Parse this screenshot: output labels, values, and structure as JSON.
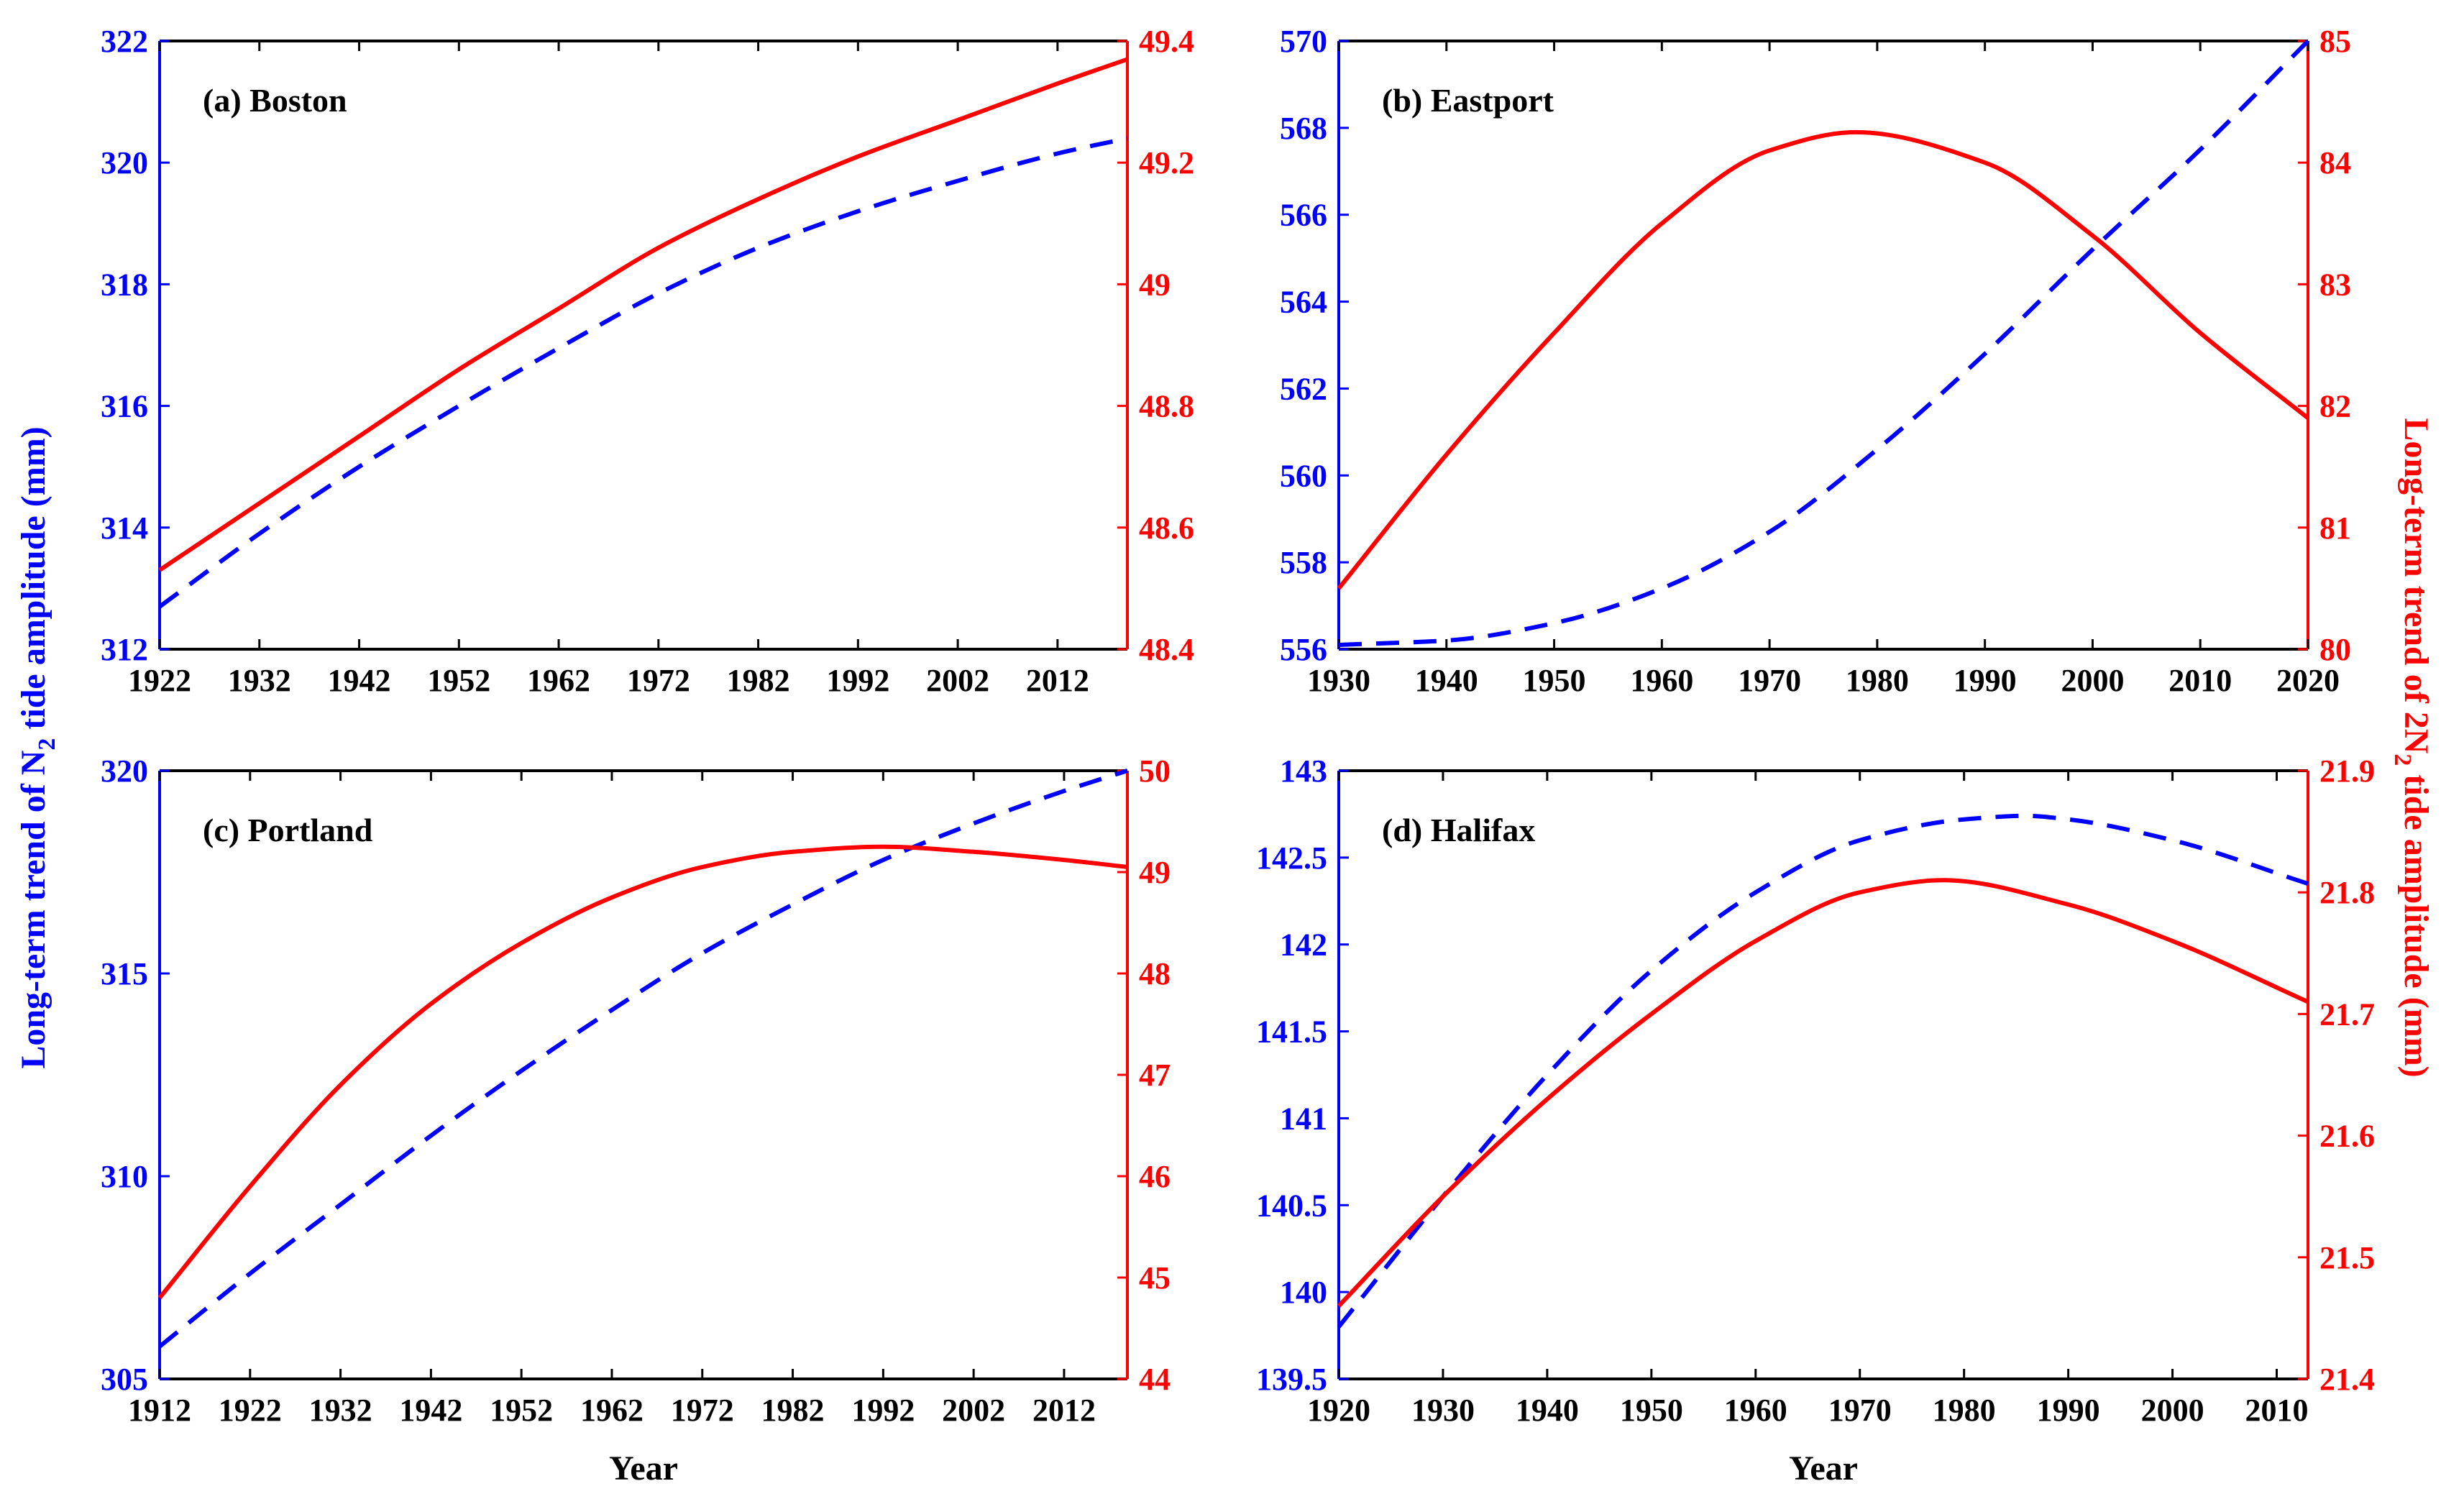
{
  "colors": {
    "left": "#0000ff",
    "right": "#ff0000",
    "axis": "#000000"
  },
  "figure": {
    "ylabel_left": {
      "pre": "Long-term trend of N",
      "sub": "2",
      "post": " tide amplitude (mm)"
    },
    "ylabel_right": {
      "pre": "Long-term trend of 2N",
      "sub": "2",
      "post": " tide amplitude (mm)"
    }
  },
  "chart_data": [
    {
      "type": "line",
      "title": "(a) Boston",
      "xlabel": "",
      "xlim": [
        1922,
        2019
      ],
      "xticks": [
        1922,
        1932,
        1942,
        1952,
        1962,
        1972,
        1982,
        1992,
        2002,
        2012
      ],
      "ylim_left": [
        312,
        322
      ],
      "yticks_left": [
        "312",
        "314",
        "316",
        "318",
        "320",
        "322"
      ],
      "ylim_right": [
        48.4,
        49.4
      ],
      "yticks_right": [
        "48.4",
        "48.6",
        "48.8",
        "49",
        "49.2",
        "49.4"
      ],
      "series": [
        {
          "name": "N2 (left axis, dashed)",
          "axis": "left",
          "style": "dashed",
          "x": [
            1922,
            1932,
            1942,
            1952,
            1962,
            1972,
            1982,
            1992,
            2002,
            2012,
            2019
          ],
          "y": [
            312.7,
            313.9,
            315.0,
            316.0,
            316.95,
            317.85,
            318.6,
            319.2,
            319.7,
            320.15,
            320.4
          ]
        },
        {
          "name": "2N2 (right axis, solid)",
          "axis": "right",
          "style": "solid",
          "x": [
            1922,
            1932,
            1942,
            1952,
            1962,
            1972,
            1982,
            1992,
            2002,
            2012,
            2019
          ],
          "y": [
            48.53,
            48.64,
            48.75,
            48.86,
            48.96,
            49.06,
            49.14,
            49.21,
            49.27,
            49.33,
            49.37
          ]
        }
      ]
    },
    {
      "type": "line",
      "title": "(b) Eastport",
      "xlabel": "",
      "xlim": [
        1930,
        2020
      ],
      "xticks": [
        1930,
        1940,
        1950,
        1960,
        1970,
        1980,
        1990,
        2000,
        2010,
        2020
      ],
      "ylim_left": [
        556,
        570
      ],
      "yticks_left": [
        "556",
        "558",
        "560",
        "562",
        "564",
        "566",
        "568",
        "570"
      ],
      "ylim_right": [
        80,
        85
      ],
      "yticks_right": [
        "80",
        "81",
        "82",
        "83",
        "84",
        "85"
      ],
      "series": [
        {
          "name": "N2 (left axis, dashed)",
          "axis": "left",
          "style": "dashed",
          "x": [
            1930,
            1940,
            1950,
            1960,
            1970,
            1980,
            1990,
            2000,
            2010,
            2020
          ],
          "y": [
            556.1,
            556.2,
            556.6,
            557.4,
            558.7,
            560.6,
            562.8,
            565.2,
            567.5,
            570.0
          ]
        },
        {
          "name": "2N2 (right axis, solid)",
          "axis": "right",
          "style": "solid",
          "x": [
            1930,
            1940,
            1950,
            1960,
            1970,
            1978,
            1990,
            2000,
            2010,
            2020
          ],
          "y": [
            80.5,
            81.6,
            82.6,
            83.5,
            84.1,
            84.25,
            84.0,
            83.4,
            82.6,
            81.9
          ]
        }
      ]
    },
    {
      "type": "line",
      "title": "(c) Portland",
      "xlabel": "Year",
      "xlim": [
        1912,
        2019
      ],
      "xticks": [
        1912,
        1922,
        1932,
        1942,
        1952,
        1962,
        1972,
        1982,
        1992,
        2002,
        2012
      ],
      "ylim_left": [
        305,
        320
      ],
      "yticks_left": [
        "305",
        "310",
        "315",
        "320"
      ],
      "ylim_right": [
        44,
        50
      ],
      "yticks_right": [
        "44",
        "45",
        "46",
        "47",
        "48",
        "49",
        "50"
      ],
      "series": [
        {
          "name": "N2 (left axis, dashed)",
          "axis": "left",
          "style": "dashed",
          "x": [
            1912,
            1922,
            1932,
            1942,
            1952,
            1962,
            1972,
            1982,
            1992,
            2002,
            2012,
            2019
          ],
          "y": [
            305.8,
            307.6,
            309.3,
            311.0,
            312.6,
            314.1,
            315.5,
            316.7,
            317.8,
            318.7,
            319.5,
            320.0
          ]
        },
        {
          "name": "2N2 (right axis, solid)",
          "axis": "right",
          "style": "solid",
          "x": [
            1912,
            1922,
            1932,
            1942,
            1952,
            1962,
            1972,
            1982,
            1992,
            2002,
            2012,
            2019
          ],
          "y": [
            44.8,
            45.9,
            46.9,
            47.7,
            48.3,
            48.75,
            49.05,
            49.2,
            49.25,
            49.2,
            49.12,
            49.05
          ]
        }
      ]
    },
    {
      "type": "line",
      "title": "(d) Halifax",
      "xlabel": "Year",
      "xlim": [
        1920,
        2013
      ],
      "xticks": [
        1920,
        1930,
        1940,
        1950,
        1960,
        1970,
        1980,
        1990,
        2000,
        2010
      ],
      "ylim_left": [
        139.5,
        143
      ],
      "yticks_left": [
        "139.5",
        "140",
        "140.5",
        "141",
        "141.5",
        "142",
        "142.5",
        "143"
      ],
      "ylim_right": [
        21.4,
        21.9
      ],
      "yticks_right": [
        "21.4",
        "21.5",
        "21.6",
        "21.7",
        "21.8",
        "21.9"
      ],
      "series": [
        {
          "name": "N2 (left axis, dashed)",
          "axis": "left",
          "style": "dashed",
          "x": [
            1920,
            1930,
            1940,
            1950,
            1960,
            1970,
            1980,
            1986,
            1990,
            2000,
            2013
          ],
          "y": [
            139.8,
            140.55,
            141.25,
            141.85,
            142.3,
            142.6,
            142.72,
            142.74,
            142.72,
            142.6,
            142.35
          ]
        },
        {
          "name": "2N2 (right axis, solid)",
          "axis": "right",
          "style": "solid",
          "x": [
            1920,
            1930,
            1940,
            1950,
            1960,
            1970,
            1978,
            1990,
            2000,
            2013
          ],
          "y": [
            21.46,
            21.55,
            21.63,
            21.7,
            21.76,
            21.8,
            21.81,
            21.79,
            21.76,
            21.71
          ]
        }
      ]
    }
  ]
}
